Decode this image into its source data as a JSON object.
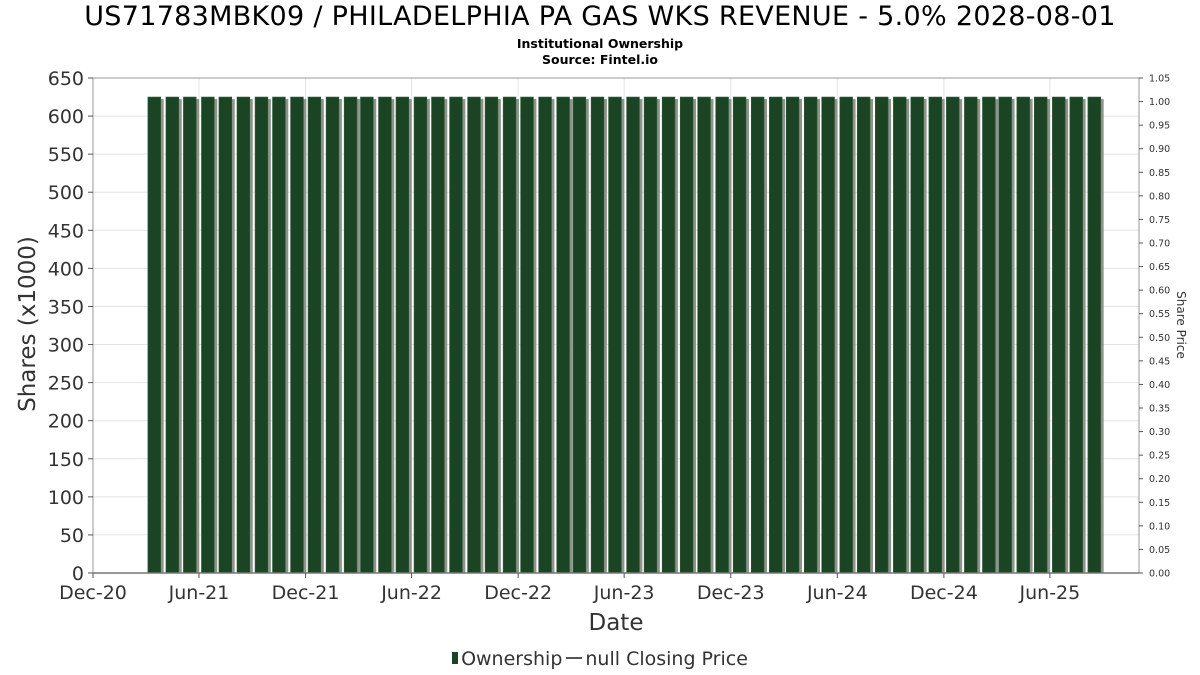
{
  "chart_data": {
    "type": "bar",
    "title": "US71783MBK09 / PHILADELPHIA PA GAS WKS REVENUE - 5.0% 2028-08-01",
    "subtitle": "Institutional Ownership",
    "source": "Source: Fintel.io",
    "xlabel": "Date",
    "ylabel": "Shares (x1000)",
    "y2label": "Share Price",
    "ylim": [
      0,
      650
    ],
    "y2lim": [
      0,
      1.05
    ],
    "y_ticks": [
      0,
      50,
      100,
      150,
      200,
      250,
      300,
      350,
      400,
      450,
      500,
      550,
      600,
      650
    ],
    "y2_ticks": [
      "0.00",
      "0.05",
      "0.10",
      "0.15",
      "0.20",
      "0.25",
      "0.30",
      "0.35",
      "0.40",
      "0.45",
      "0.50",
      "0.55",
      "0.60",
      "0.65",
      "0.70",
      "0.75",
      "0.80",
      "0.85",
      "0.90",
      "0.95",
      "1.00",
      "1.05"
    ],
    "x_range": [
      "2020-12-01",
      "2025-11-01"
    ],
    "x_tick_labels": [
      {
        "label": "Dec-20",
        "date": "2020-12-01"
      },
      {
        "label": "Jun-21",
        "date": "2021-06-01"
      },
      {
        "label": "Dec-21",
        "date": "2021-12-01"
      },
      {
        "label": "Jun-22",
        "date": "2022-06-01"
      },
      {
        "label": "Dec-22",
        "date": "2022-12-01"
      },
      {
        "label": "Jun-23",
        "date": "2023-06-01"
      },
      {
        "label": "Dec-23",
        "date": "2023-12-01"
      },
      {
        "label": "Jun-24",
        "date": "2024-06-01"
      },
      {
        "label": "Dec-24",
        "date": "2024-12-01"
      },
      {
        "label": "Jun-25",
        "date": "2025-06-01"
      }
    ],
    "grid": true,
    "legend_position": "bottom-center",
    "series": [
      {
        "name": "Ownership",
        "color": "#1b4424",
        "x": [
          "2021-03",
          "2021-04",
          "2021-05",
          "2021-06",
          "2021-07",
          "2021-08",
          "2021-09",
          "2021-10",
          "2021-11",
          "2021-12",
          "2022-01",
          "2022-02",
          "2022-03",
          "2022-04",
          "2022-05",
          "2022-06",
          "2022-07",
          "2022-08",
          "2022-09",
          "2022-10",
          "2022-11",
          "2022-12",
          "2023-01",
          "2023-02",
          "2023-03",
          "2023-04",
          "2023-05",
          "2023-06",
          "2023-07",
          "2023-08",
          "2023-09",
          "2023-10",
          "2023-11",
          "2023-12",
          "2024-01",
          "2024-02",
          "2024-03",
          "2024-04",
          "2024-05",
          "2024-06",
          "2024-07",
          "2024-08",
          "2024-09",
          "2024-10",
          "2024-11",
          "2024-12",
          "2025-01",
          "2025-02",
          "2025-03",
          "2025-04",
          "2025-05",
          "2025-06",
          "2025-07",
          "2025-08"
        ],
        "values": [
          625,
          625,
          625,
          625,
          625,
          625,
          625,
          625,
          625,
          625,
          625,
          625,
          625,
          625,
          625,
          625,
          625,
          625,
          625,
          625,
          625,
          625,
          625,
          625,
          625,
          625,
          625,
          625,
          625,
          625,
          625,
          625,
          625,
          625,
          625,
          625,
          625,
          625,
          625,
          625,
          625,
          625,
          625,
          625,
          625,
          625,
          625,
          625,
          625,
          625,
          625,
          625,
          625,
          625
        ]
      },
      {
        "name": "null Closing Price",
        "color": "#555555",
        "x": [],
        "values": []
      }
    ]
  }
}
